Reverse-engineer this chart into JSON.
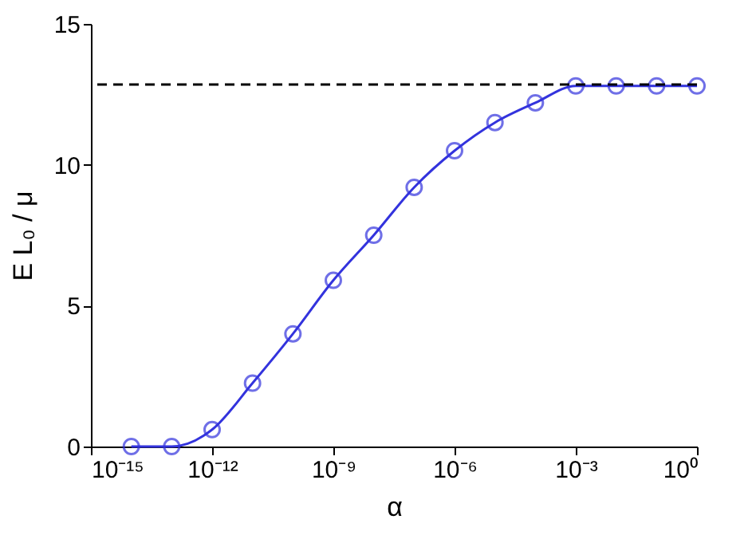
{
  "chart_data": {
    "type": "line",
    "xlabel": "α",
    "ylabel": "E L₀ / μ",
    "x": [
      1e-14,
      1e-13,
      1e-12,
      1e-11,
      1e-10,
      1e-09,
      1e-08,
      1e-07,
      1e-06,
      1e-05,
      0.0001,
      0.001,
      0.01,
      0.1,
      1
    ],
    "series": [
      {
        "color": "#3333dd",
        "values": [
          0,
          0,
          0.6,
          2.25,
          4.0,
          5.9,
          7.5,
          9.2,
          10.5,
          11.5,
          12.2,
          12.8,
          12.8,
          12.8,
          12.8
        ]
      }
    ],
    "marker": "circle",
    "line_style": "solid",
    "log": "x",
    "xlim": [
      1e-15,
      1
    ],
    "ylim": [
      0,
      15
    ],
    "xticks": [
      {
        "value": 1e-15,
        "label": "10⁻¹⁵"
      },
      {
        "value": 1e-12,
        "label": "10⁻¹²"
      },
      {
        "value": 1e-09,
        "label": "10⁻⁹"
      },
      {
        "value": 1e-06,
        "label": "10⁻⁶"
      },
      {
        "value": 0.001,
        "label": "10⁻³"
      },
      {
        "value": 1,
        "label": "10⁰"
      }
    ],
    "yticks": [
      0,
      5,
      10,
      15
    ],
    "ref_lines": [
      {
        "axis": "y",
        "value": 12.85,
        "color": "#000000",
        "line_style": "dashed"
      }
    ]
  }
}
